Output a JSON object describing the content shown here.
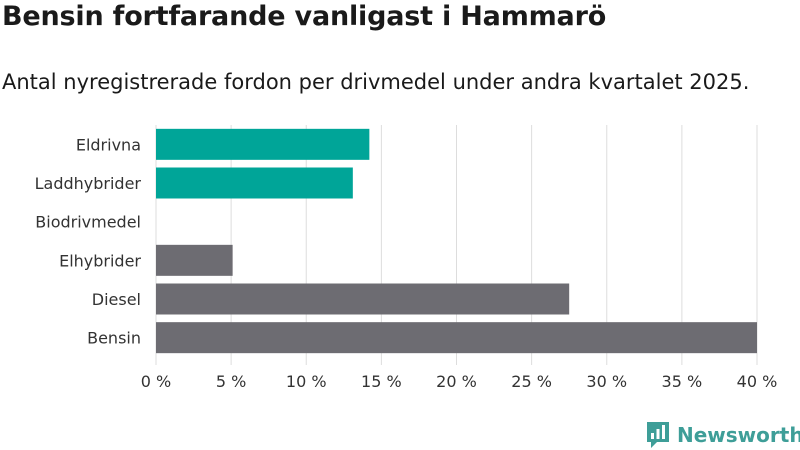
{
  "title": "Bensin fortfarande vanligast i Hammarö",
  "subtitle": "Antal nyregistrerade fordon per drivmedel under andra kvartalet 2025.",
  "logo": {
    "text": "Newsworthy",
    "icon": "newsworthy-bar-chart-icon",
    "color": "#3e9e98"
  },
  "colors": {
    "highlight": "#00a598",
    "default": "#6d6c72",
    "grid": "#dddddd"
  },
  "chart_data": {
    "type": "bar",
    "orientation": "horizontal",
    "categories": [
      "Eldrivna",
      "Laddhybrider",
      "Biodrivmedel",
      "Elhybrider",
      "Diesel",
      "Bensin"
    ],
    "values": [
      14.2,
      13.1,
      0,
      5.1,
      27.5,
      40
    ],
    "highlighted": [
      true,
      true,
      false,
      false,
      false,
      false
    ],
    "xlim": [
      0,
      40
    ],
    "x_ticks": [
      0,
      5,
      10,
      15,
      20,
      25,
      30,
      35,
      40
    ],
    "x_tick_labels": [
      "0 %",
      "5 %",
      "10 %",
      "15 %",
      "20 %",
      "25 %",
      "30 %",
      "35 %",
      "40 %"
    ],
    "grid": true,
    "legend": false,
    "xlabel": "",
    "ylabel": ""
  }
}
